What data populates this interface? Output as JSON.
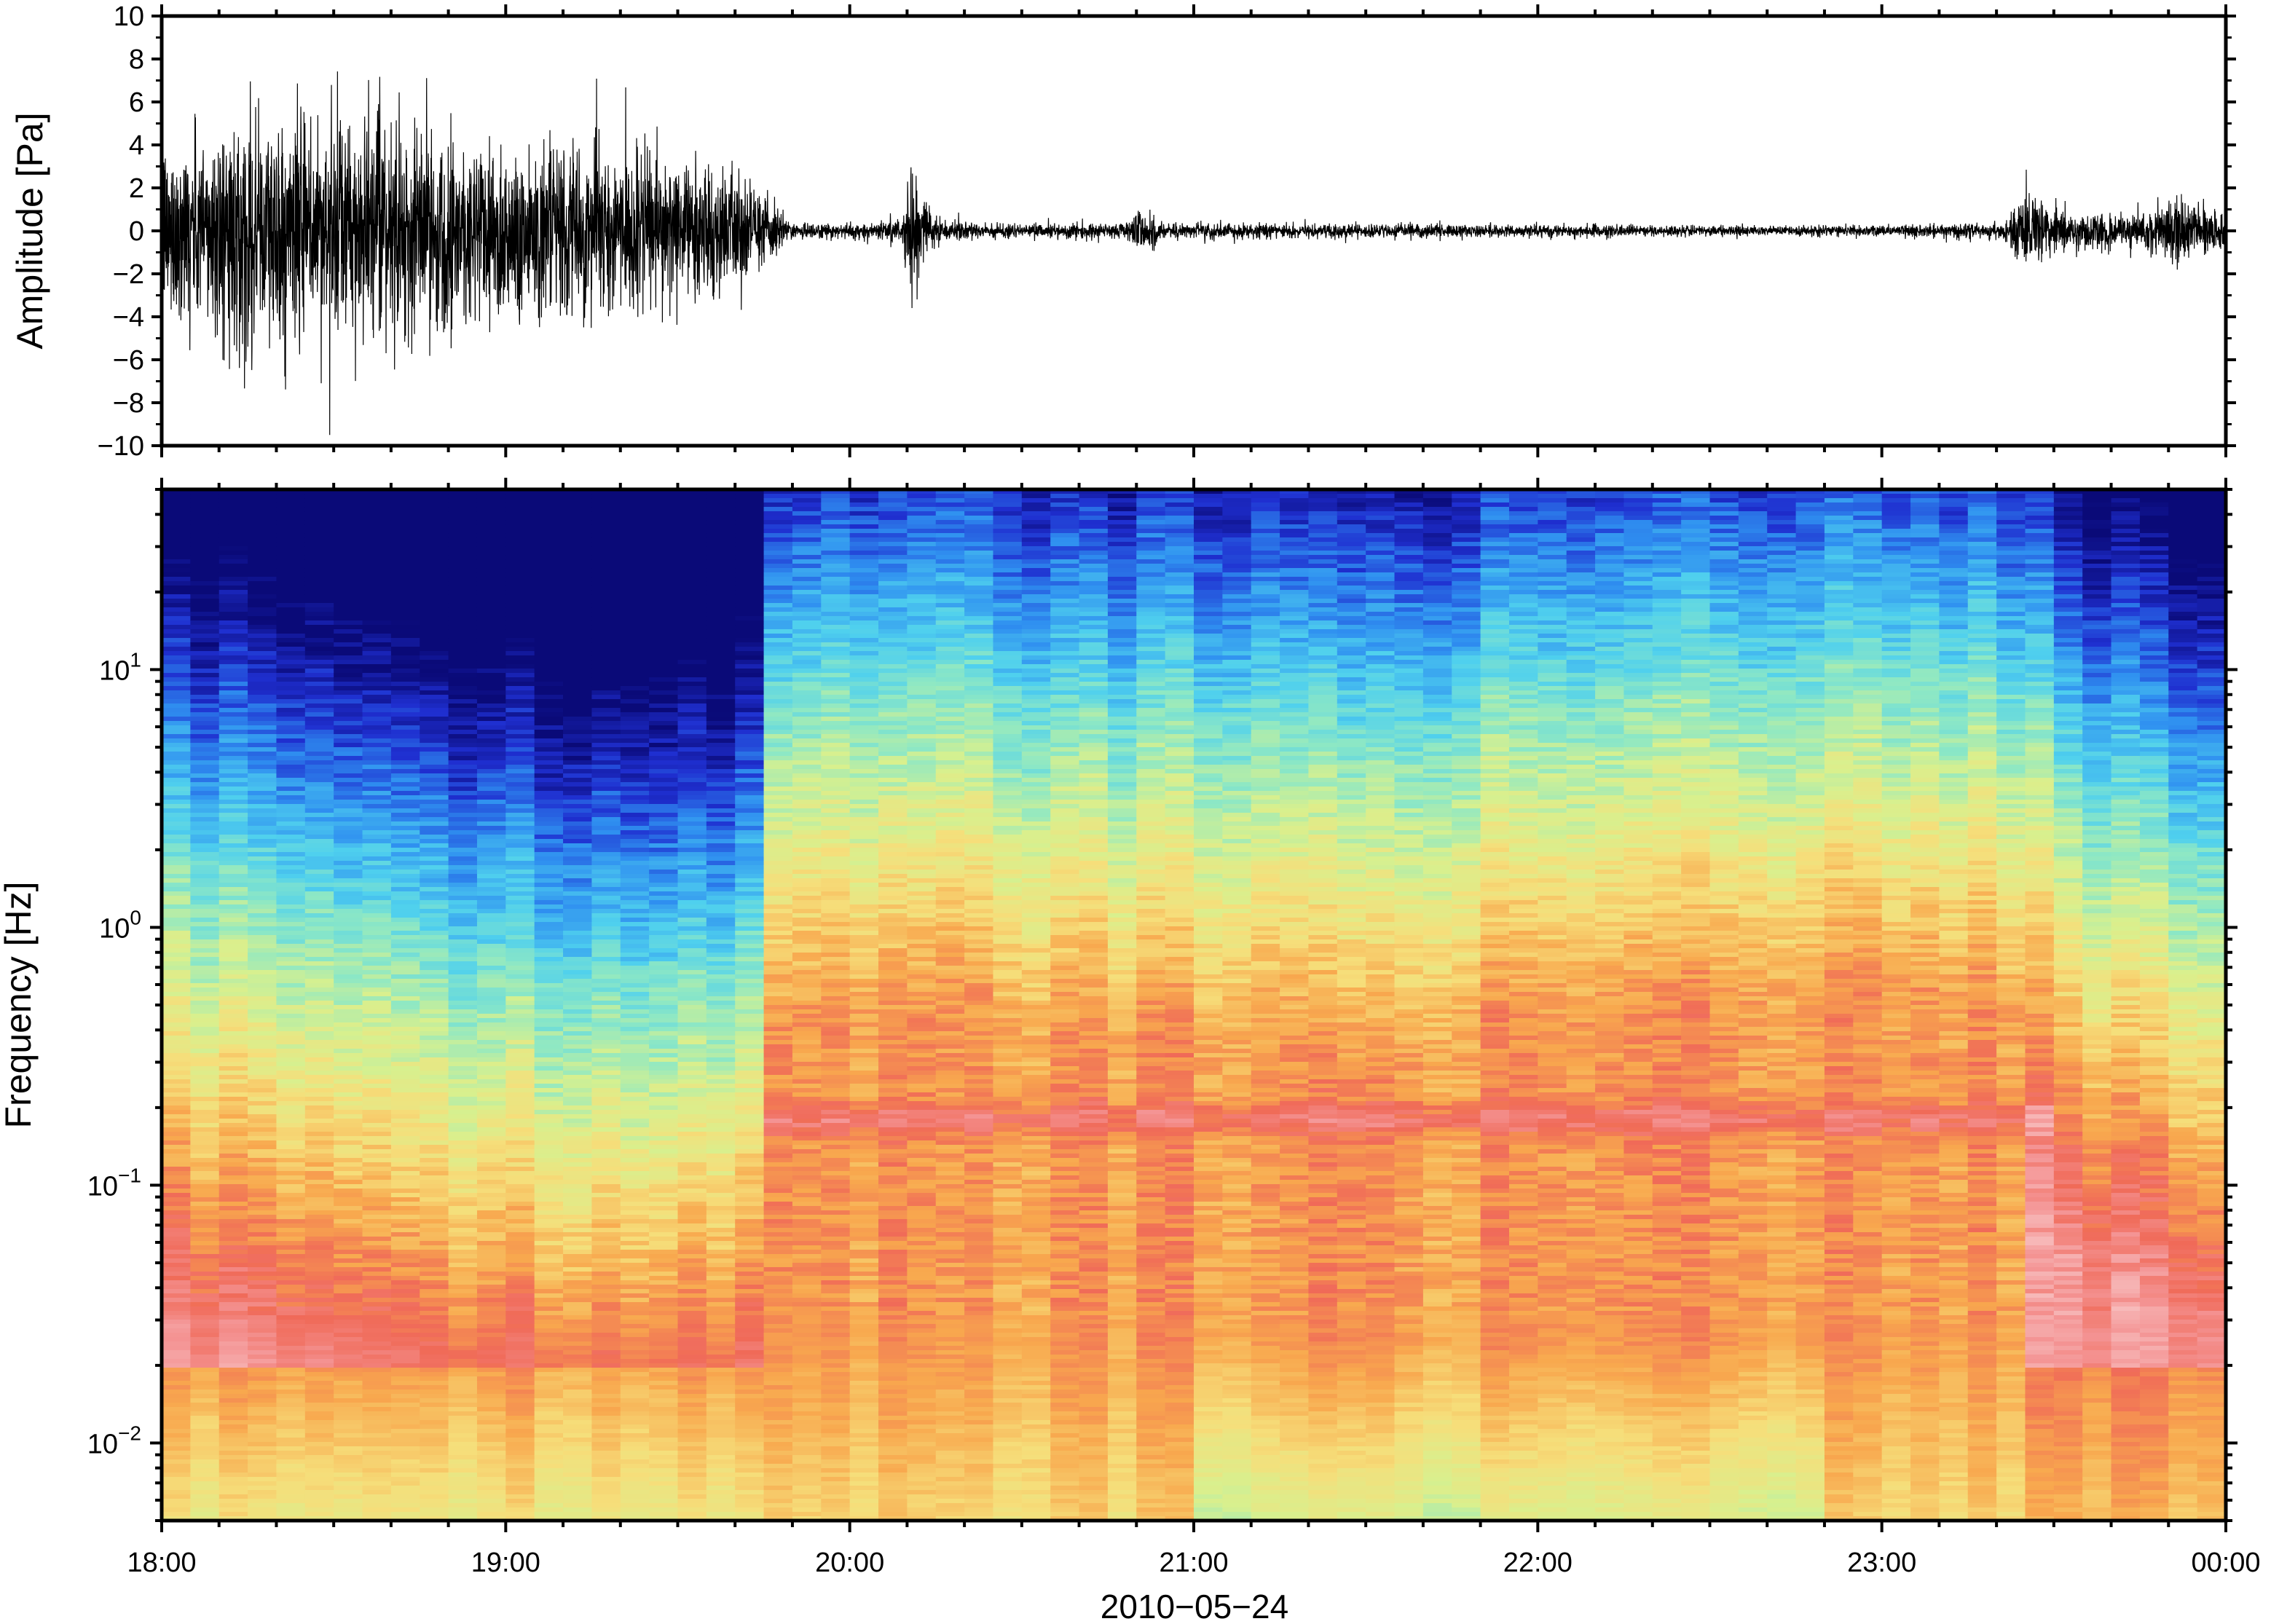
{
  "chart_data": [
    {
      "type": "line",
      "name": "waveform",
      "ylabel": "Amplitude [Pa]",
      "xlabel": "",
      "ylim": [
        -10,
        10
      ],
      "yticks": [
        "10",
        "8",
        "6",
        "4",
        "2",
        "0",
        "−2",
        "−4",
        "−6",
        "−8",
        "−10"
      ],
      "ytick_values": [
        10,
        8,
        6,
        4,
        2,
        0,
        -2,
        -4,
        -6,
        -8,
        -10
      ],
      "x_range": [
        "18:00",
        "00:00"
      ],
      "envelope": {
        "time_hours": [
          0,
          0.25,
          0.5,
          0.75,
          1.0,
          1.25,
          1.5,
          1.7,
          1.78,
          1.82,
          2.0,
          2.15,
          2.18,
          2.22,
          2.28,
          2.5,
          2.8,
          2.86,
          2.9,
          3.2,
          3.6,
          4.0,
          4.5,
          5.0,
          5.35,
          5.42,
          5.55,
          5.7,
          5.8,
          5.87,
          6.0
        ],
        "amplitude_pa": [
          3.5,
          4.8,
          4.5,
          4.2,
          3.8,
          3.3,
          3.0,
          2.2,
          1.2,
          0.35,
          0.3,
          0.5,
          2.6,
          1.2,
          0.35,
          0.3,
          0.3,
          1.3,
          0.35,
          0.3,
          0.28,
          0.25,
          0.22,
          0.22,
          0.35,
          1.5,
          0.8,
          0.7,
          0.9,
          1.5,
          0.6
        ]
      }
    },
    {
      "type": "heatmap",
      "name": "spectrogram",
      "ylabel": "Frequency [Hz]",
      "xlabel": "2010−05−24",
      "y_scale": "log",
      "ylim_hz": [
        0.005,
        50
      ],
      "yticks": [
        {
          "base": "10",
          "exp": "1",
          "value": 10
        },
        {
          "base": "10",
          "exp": "0",
          "value": 1
        },
        {
          "base": "10",
          "exp": "−1",
          "value": 0.1
        },
        {
          "base": "10",
          "exp": "−2",
          "value": 0.01
        }
      ],
      "xticks": [
        "18:00",
        "19:00",
        "20:00",
        "21:00",
        "22:00",
        "23:00",
        "00:00"
      ],
      "xtick_hours": [
        0,
        1,
        2,
        3,
        4,
        5,
        6
      ],
      "colormap": [
        "#0a0a78",
        "#1f2fd0",
        "#2f8ff0",
        "#4fd0ee",
        "#8ee8c4",
        "#d8f08e",
        "#f6de7a",
        "#f8a84e",
        "#f06a58",
        "#f49494",
        "#f8c8c8"
      ],
      "time_bin_hours": 0.0833,
      "cutoff_log10_hz": {
        "time_hours": [
          0,
          0.3,
          1.0,
          1.6,
          1.72,
          1.8,
          2.0,
          2.1,
          2.15,
          2.22,
          2.3,
          2.45,
          2.6,
          3.0,
          3.2,
          3.4,
          3.5,
          3.8,
          4.2,
          4.6,
          5.0,
          5.3,
          5.45,
          5.55,
          5.7,
          5.85,
          6.0
        ],
        "value": [
          0.3,
          0.2,
          -0.1,
          -0.15,
          0.0,
          0.95,
          0.95,
          1.05,
          0.7,
          1.0,
          1.05,
          0.95,
          0.85,
          0.85,
          0.9,
          0.72,
          0.7,
          0.9,
          0.95,
          1.0,
          1.05,
          1.0,
          0.9,
          0.6,
          0.5,
          0.4,
          0.3
        ]
      },
      "band_hz": 0.18
    }
  ]
}
